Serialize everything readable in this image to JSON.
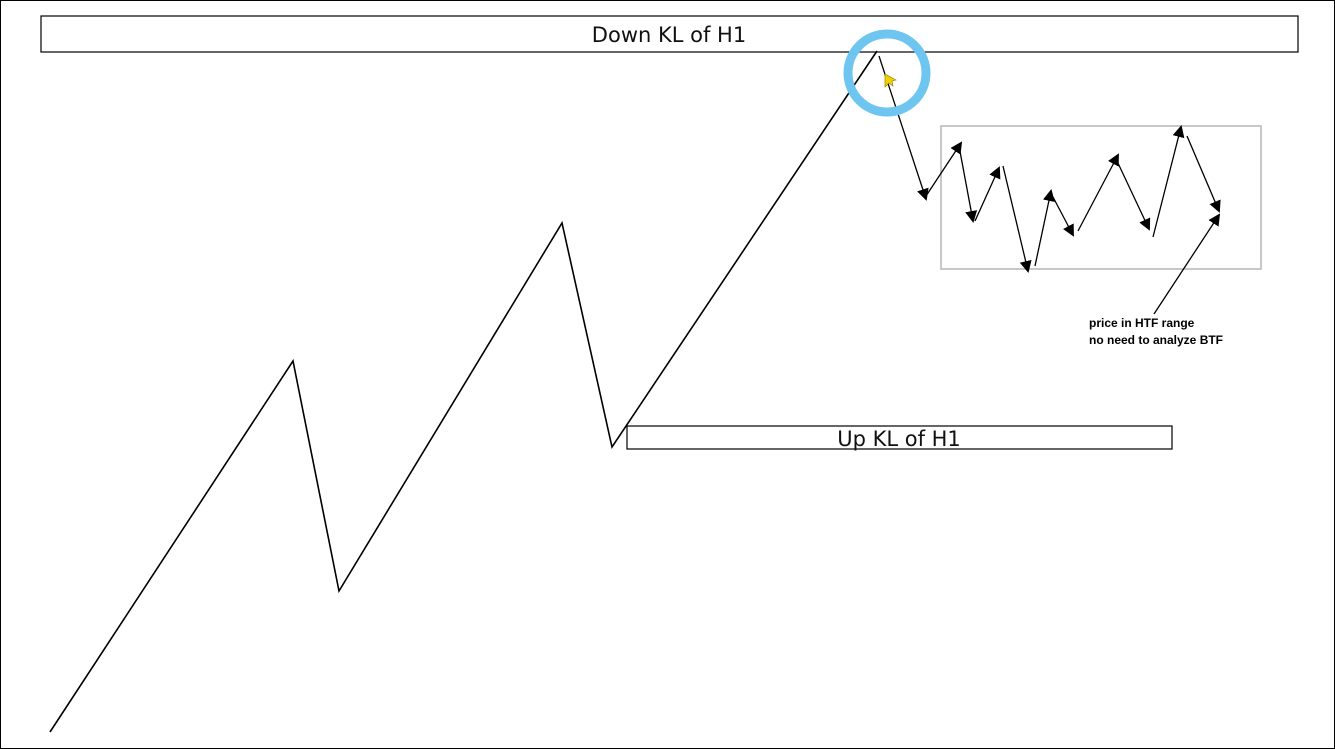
{
  "labels": {
    "down_kl": "Down KL of H1",
    "up_kl": "Up KL of H1",
    "note_line1": "price in HTF range",
    "note_line2": "no need to analyze BTF"
  },
  "colors": {
    "line": "#000000",
    "highlight_circle": "#6ec6f0",
    "range_box_border": "#b5b5b5",
    "cursor": "#f0d000"
  },
  "icons": {
    "cursor": "pointer-cursor-icon",
    "highlight": "highlight-circle-icon"
  }
}
